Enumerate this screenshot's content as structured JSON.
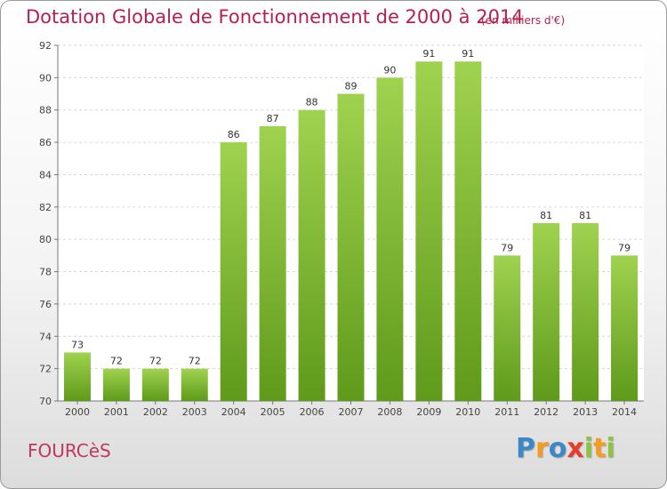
{
  "chart_data": {
    "type": "bar",
    "title": "Dotation Globale de Fonctionnement de 2000 à 2014",
    "unit_note": "(en milliers d'€)",
    "categories": [
      "2000",
      "2001",
      "2002",
      "2003",
      "2004",
      "2005",
      "2006",
      "2007",
      "2008",
      "2009",
      "2010",
      "2011",
      "2012",
      "2013",
      "2014"
    ],
    "values": [
      73,
      72,
      72,
      72,
      86,
      87,
      88,
      89,
      90,
      91,
      91,
      79,
      81,
      81,
      79
    ],
    "ylim": [
      70,
      92
    ],
    "yticks": [
      70,
      72,
      74,
      76,
      78,
      80,
      82,
      84,
      86,
      88,
      90,
      92
    ],
    "xlabel": "",
    "ylabel": "",
    "grid": true,
    "colors": {
      "bar_light": "#9fd24f",
      "bar_dark": "#5f9a1a",
      "title": "#b5204f"
    }
  },
  "commune": "FOURCèS",
  "logo": {
    "letters": [
      "P",
      "r",
      "o",
      "x",
      "i",
      "t",
      "i"
    ],
    "colors": [
      "#3b88c9",
      "#f39c1f",
      "#3b88c9",
      "#e63d2c",
      "#8cc43f",
      "#f39c1f",
      "#8cc43f"
    ]
  }
}
